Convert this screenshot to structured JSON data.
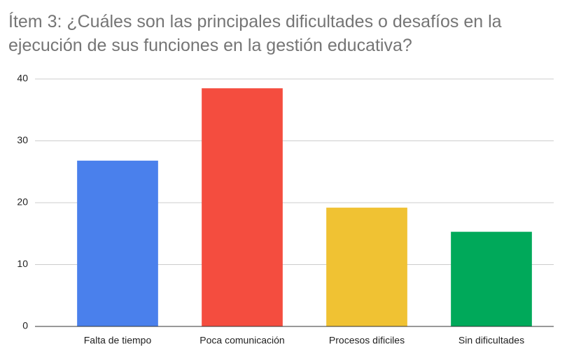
{
  "chart_data": {
    "type": "bar",
    "title": "Ítem 3: ¿Cuáles son las principales dificultades o desafíos en la ejecución de sus funciones en la gestión educativa?",
    "categories": [
      "Falta de tiempo",
      "Poca comunicación",
      "Procesos dificiles",
      "Sin dificultades"
    ],
    "values": [
      26.8,
      38.5,
      19.2,
      15.3
    ],
    "colors": [
      "#4a80ec",
      "#f44d3f",
      "#f0c233",
      "#00a95a"
    ],
    "ylim": [
      0,
      40
    ],
    "yticks": [
      0,
      10,
      20,
      30,
      40
    ],
    "grid": true
  }
}
